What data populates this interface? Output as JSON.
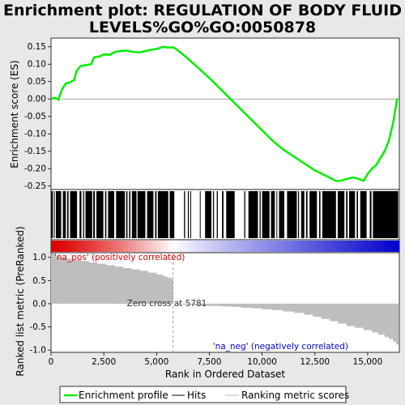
{
  "chart_data": [
    {
      "type": "line",
      "title_line1": "Enrichment plot: REGULATION OF BODY FLUID",
      "title_line2": "LEVELS%GO%GO:0050878",
      "ylabel": "Enrichment score (ES)",
      "xlim": [
        0,
        16500
      ],
      "ylim": [
        -0.26,
        0.175
      ],
      "yticks": [
        0.15,
        0.1,
        0.05,
        0.0,
        -0.05,
        -0.1,
        -0.15,
        -0.2,
        -0.25
      ],
      "ytick_labels": [
        "0.15",
        "0.10",
        "0.05",
        "0.00",
        "-0.05",
        "-0.10",
        "-0.15",
        "-0.20",
        "-0.25"
      ],
      "series": [
        {
          "color": "#00ee00",
          "x": [
            0,
            200,
            350,
            500,
            700,
            900,
            1100,
            1200,
            1400,
            1700,
            1900,
            2050,
            2300,
            2500,
            2800,
            3000,
            3300,
            3600,
            3900,
            4200,
            4500,
            4800,
            5100,
            5300,
            5500,
            5800,
            6000,
            6500,
            7000,
            7500,
            8000,
            8500,
            9000,
            9500,
            10000,
            10500,
            11000,
            11500,
            12000,
            12500,
            13000,
            13500,
            13700,
            14000,
            14300,
            14600,
            14800,
            15000,
            15200,
            15400,
            15600,
            15800,
            16000,
            16200,
            16400
          ],
          "y": [
            0.002,
            0.003,
            -0.002,
            0.025,
            0.045,
            0.048,
            0.055,
            0.08,
            0.095,
            0.098,
            0.1,
            0.12,
            0.122,
            0.128,
            0.127,
            0.135,
            0.138,
            0.139,
            0.135,
            0.134,
            0.138,
            0.142,
            0.145,
            0.15,
            0.148,
            0.148,
            0.14,
            0.115,
            0.088,
            0.06,
            0.03,
            0.0,
            -0.03,
            -0.06,
            -0.09,
            -0.12,
            -0.145,
            -0.165,
            -0.185,
            -0.205,
            -0.22,
            -0.235,
            -0.235,
            -0.23,
            -0.225,
            -0.23,
            -0.235,
            -0.215,
            -0.2,
            -0.19,
            -0.17,
            -0.15,
            -0.12,
            -0.07,
            0.002
          ]
        }
      ]
    },
    {
      "type": "hits",
      "hit_color": "#000000",
      "xlim": [
        0,
        16500
      ],
      "segments": [
        [
          20,
          90
        ],
        [
          140,
          160
        ],
        [
          230,
          480
        ],
        [
          560,
          700
        ],
        [
          760,
          830
        ],
        [
          900,
          1230
        ],
        [
          1350,
          1440
        ],
        [
          1520,
          1570
        ],
        [
          1630,
          1950
        ],
        [
          2000,
          2080
        ],
        [
          2150,
          2480
        ],
        [
          2560,
          2620
        ],
        [
          2700,
          2990
        ],
        [
          3080,
          3500
        ],
        [
          3560,
          3620
        ],
        [
          3700,
          3760
        ],
        [
          3830,
          4050
        ],
        [
          4100,
          4470
        ],
        [
          4550,
          4850
        ],
        [
          4930,
          5000
        ],
        [
          5060,
          5550
        ],
        [
          5620,
          5840
        ],
        [
          6300,
          6350
        ],
        [
          6480,
          6530
        ],
        [
          6600,
          6640
        ],
        [
          7050,
          7080
        ],
        [
          7300,
          7600
        ],
        [
          7670,
          7720
        ],
        [
          7850,
          7900
        ],
        [
          8100,
          8170
        ],
        [
          8300,
          8700
        ],
        [
          9150,
          9200
        ],
        [
          9350,
          9800
        ],
        [
          9880,
          9930
        ],
        [
          10000,
          10350
        ],
        [
          10420,
          10600
        ],
        [
          10680,
          10720
        ],
        [
          10800,
          11050
        ],
        [
          11180,
          11640
        ],
        [
          11700,
          11750
        ],
        [
          11850,
          12000
        ],
        [
          12080,
          12150
        ],
        [
          12250,
          12600
        ],
        [
          12700,
          12760
        ],
        [
          12850,
          13500
        ],
        [
          13580,
          13900
        ],
        [
          13980,
          14050
        ],
        [
          14120,
          14400
        ],
        [
          14480,
          14540
        ],
        [
          14650,
          14950
        ],
        [
          15100,
          15180
        ],
        [
          15250,
          16450
        ]
      ]
    },
    {
      "type": "heatmap",
      "xlim": [
        0,
        16500
      ],
      "high_color": "#dd0000",
      "mid_color": "#ffffff",
      "low_color": "#0000cc"
    },
    {
      "type": "bar",
      "title": "",
      "xlabel": "Rank in Ordered Dataset",
      "ylabel": "Ranked list metric (PreRanked)",
      "xlim": [
        0,
        16500
      ],
      "ylim": [
        -1.05,
        1.1
      ],
      "xticks": [
        0,
        2500,
        5000,
        7500,
        10000,
        12500,
        15000
      ],
      "xtick_labels": [
        "0",
        "2,500",
        "5,000",
        "7,500",
        "10,000",
        "12,500",
        "15,000"
      ],
      "yticks": [
        1.0,
        0.5,
        0.0,
        -0.5,
        -1.0
      ],
      "ytick_labels": [
        "1.0",
        "0.5",
        "0.0",
        "-0.5",
        "-1.0"
      ],
      "color": "#bebebe",
      "x": [
        0,
        200,
        400,
        700,
        1000,
        1400,
        1800,
        2200,
        2600,
        3000,
        3400,
        3800,
        4200,
        4600,
        5000,
        5300,
        5500,
        5700,
        5781,
        6000,
        6500,
        7000,
        7500,
        8000,
        8500,
        9000,
        9500,
        10000,
        10500,
        11000,
        11500,
        12000,
        12400,
        12800,
        13200,
        13600,
        14000,
        14400,
        14800,
        15200,
        15500,
        15800,
        16000,
        16200,
        16350,
        16450
      ],
      "values": [
        1.08,
        1.02,
        0.99,
        0.97,
        0.95,
        0.92,
        0.89,
        0.86,
        0.83,
        0.8,
        0.77,
        0.74,
        0.71,
        0.67,
        0.63,
        0.59,
        0.56,
        0.52,
        0.0,
        -0.02,
        -0.03,
        -0.04,
        -0.05,
        -0.06,
        -0.07,
        -0.09,
        -0.1,
        -0.12,
        -0.14,
        -0.17,
        -0.2,
        -0.24,
        -0.28,
        -0.33,
        -0.38,
        -0.43,
        -0.48,
        -0.52,
        -0.57,
        -0.62,
        -0.67,
        -0.72,
        -0.76,
        -0.82,
        -0.88,
        -0.98
      ],
      "annotations": {
        "pos": "'na_pos' (positively correlated)",
        "neg": "'na_neg' (negatively correlated)",
        "zero_cross": "Zero cross at 5781",
        "pos_color": "#dd0000",
        "neg_color": "#0000cc"
      },
      "zero_cross_x": 5781
    }
  ],
  "legend": {
    "placement": "bottom",
    "items": [
      {
        "label": "Enrichment profile",
        "color": "#00ee00"
      },
      {
        "label": "Hits",
        "color": "#000000"
      },
      {
        "label": "Ranking metric scores",
        "color": "#bebebe"
      }
    ]
  }
}
